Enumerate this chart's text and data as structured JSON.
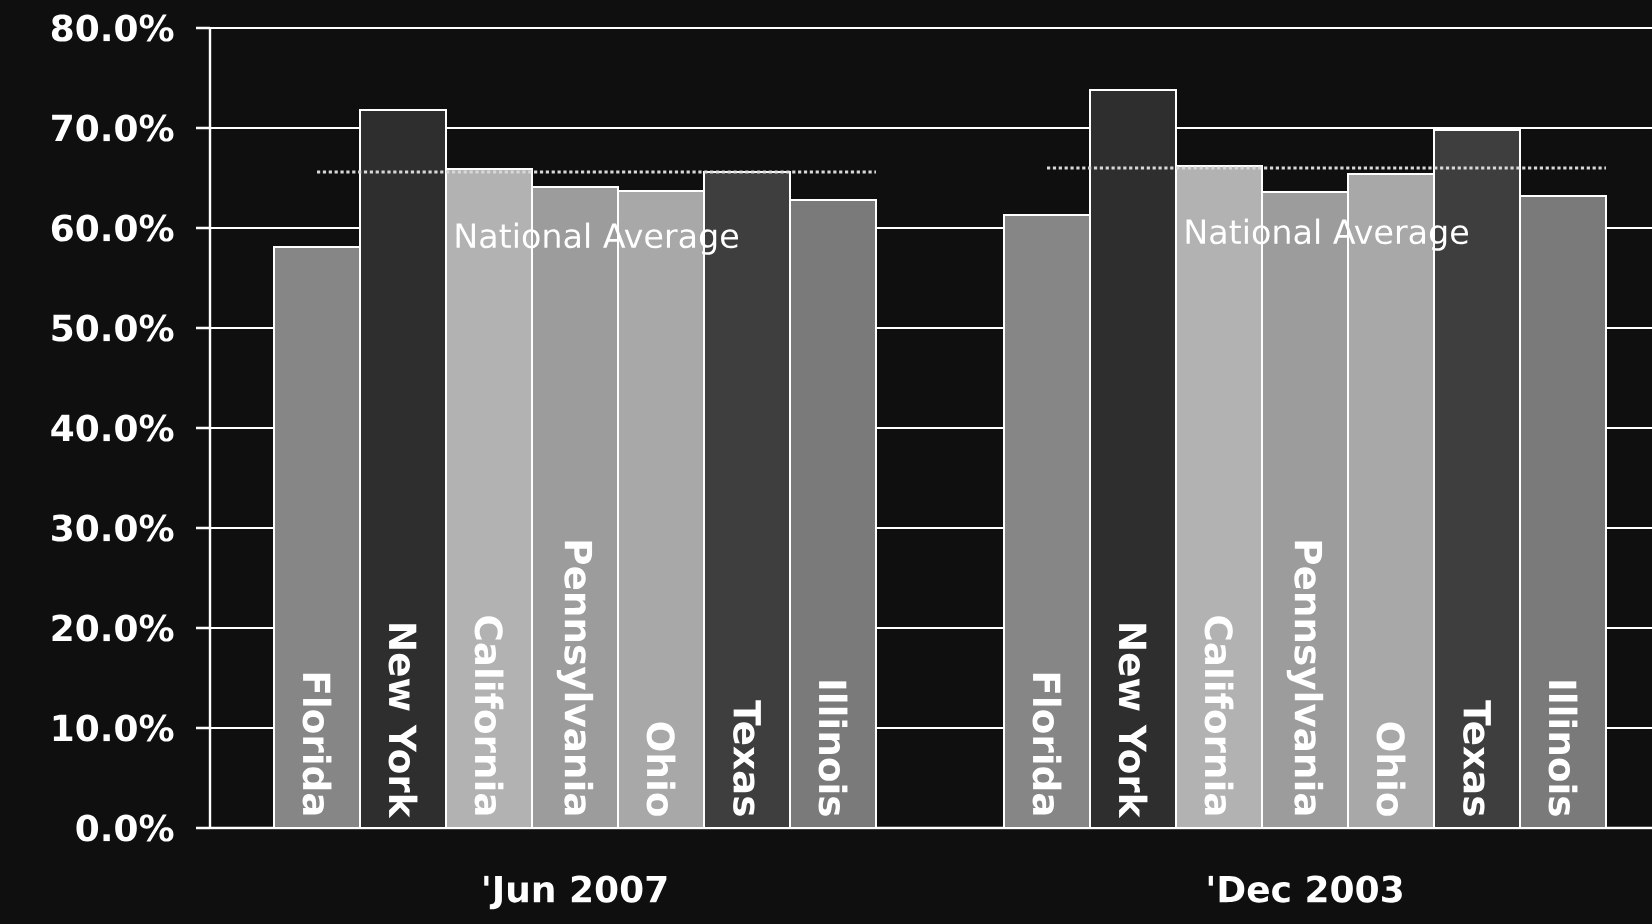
{
  "chart_data": {
    "type": "bar",
    "categories": [
      "'Jun 2007",
      "'Dec 2003"
    ],
    "series": [
      {
        "name": "Florida",
        "color": "#868686",
        "values": [
          58.1,
          61.3
        ]
      },
      {
        "name": "New York",
        "color": "#2e2e2e",
        "values": [
          71.8,
          73.8
        ]
      },
      {
        "name": "California",
        "color": "#b2b2b2",
        "values": [
          65.9,
          66.2
        ]
      },
      {
        "name": "Pennsylvania",
        "color": "#9c9c9c",
        "values": [
          64.1,
          63.6
        ]
      },
      {
        "name": "Ohio",
        "color": "#a8a8a8",
        "values": [
          63.7,
          65.4
        ]
      },
      {
        "name": "Texas",
        "color": "#3e3e3e",
        "values": [
          65.6,
          69.8
        ]
      },
      {
        "name": "Illinois",
        "color": "#7a7a7a",
        "values": [
          62.8,
          63.2
        ]
      }
    ],
    "ylim": [
      0,
      80
    ],
    "yticks": [
      {
        "value": 0,
        "label": "0.0%"
      },
      {
        "value": 10,
        "label": "10.0%"
      },
      {
        "value": 20,
        "label": "20.0%"
      },
      {
        "value": 30,
        "label": "30.0%"
      },
      {
        "value": 40,
        "label": "40.0%"
      },
      {
        "value": 50,
        "label": "50.0%"
      },
      {
        "value": 60,
        "label": "60.0%"
      },
      {
        "value": 70,
        "label": "70.0%"
      },
      {
        "value": 80,
        "label": "80.0%"
      }
    ],
    "grid": "y",
    "ref_lines": [
      {
        "axis": "y",
        "value": 65.6,
        "label": "National Average",
        "color": "#d8d8d8",
        "line_style": "dotted"
      },
      {
        "axis": "y",
        "value": 66.0,
        "label": "National Average",
        "color": "#d8d8d8",
        "line_style": "dotted"
      }
    ]
  }
}
